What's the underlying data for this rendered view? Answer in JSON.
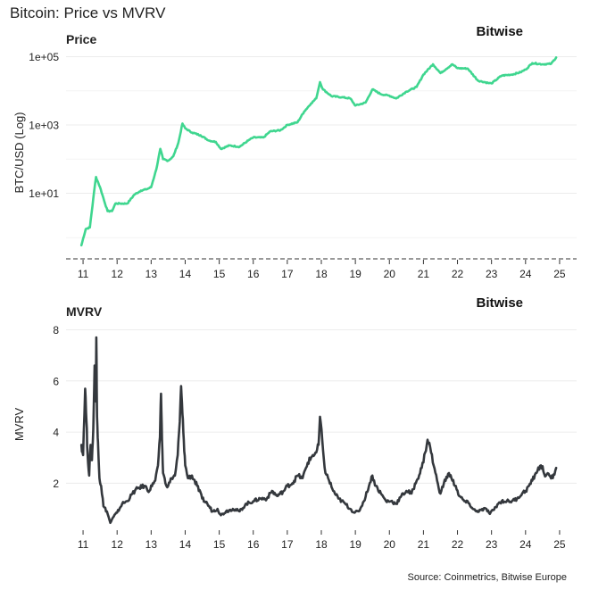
{
  "title": "Bitcoin: Price vs MVRV",
  "source": "Source: Coinmetrics, Bitwise Europe",
  "brand": "Bitwise",
  "colors": {
    "price": "#3fd68f",
    "mvrv": "#34383d",
    "grid": "#ececec",
    "text": "#222222"
  },
  "chart_data": [
    {
      "type": "line",
      "panel_title": "Price",
      "ylabel": "BTC/USD (Log)",
      "yscale": "log",
      "ylim": [
        0.12,
        200000
      ],
      "yticks": [
        10,
        1000,
        100000
      ],
      "yticklabels": [
        "1e+01",
        "1e+03",
        "1e+05"
      ],
      "xlim": [
        2010.5,
        2025.5
      ],
      "xticks": [
        2011,
        2012,
        2013,
        2014,
        2015,
        2016,
        2017,
        2018,
        2019,
        2020,
        2021,
        2022,
        2023,
        2024,
        2025
      ],
      "xticklabels": [
        "11",
        "12",
        "13",
        "14",
        "15",
        "16",
        "17",
        "18",
        "19",
        "20",
        "21",
        "22",
        "23",
        "24",
        "25"
      ],
      "series": [
        {
          "name": "BTC/USD",
          "x": [
            2010.95,
            2011.08,
            2011.2,
            2011.3,
            2011.38,
            2011.45,
            2011.52,
            2011.62,
            2011.72,
            2011.85,
            2011.95,
            2012.1,
            2012.3,
            2012.5,
            2012.7,
            2012.85,
            2013.0,
            2013.15,
            2013.27,
            2013.35,
            2013.5,
            2013.65,
            2013.8,
            2013.92,
            2014.0,
            2014.2,
            2014.45,
            2014.7,
            2014.9,
            2015.05,
            2015.3,
            2015.6,
            2015.85,
            2016.0,
            2016.3,
            2016.5,
            2016.8,
            2017.0,
            2017.3,
            2017.5,
            2017.7,
            2017.85,
            2017.96,
            2018.05,
            2018.3,
            2018.6,
            2018.85,
            2019.0,
            2019.3,
            2019.5,
            2019.75,
            2020.0,
            2020.2,
            2020.5,
            2020.8,
            2021.0,
            2021.28,
            2021.5,
            2021.85,
            2022.0,
            2022.3,
            2022.6,
            2022.9,
            2023.0,
            2023.3,
            2023.6,
            2023.85,
            2024.0,
            2024.2,
            2024.5,
            2024.75,
            2024.9
          ],
          "values": [
            0.3,
            0.9,
            1.0,
            7.0,
            30.0,
            20.0,
            13.0,
            6.0,
            3.0,
            3.0,
            5.0,
            5.0,
            5.0,
            9.0,
            12.0,
            13.0,
            15.0,
            50.0,
            200.0,
            100.0,
            90.0,
            120.0,
            300.0,
            1100.0,
            800.0,
            600.0,
            500.0,
            350.0,
            320.0,
            200.0,
            250.0,
            230.0,
            350.0,
            430.0,
            430.0,
            650.0,
            700.0,
            1000.0,
            1200.0,
            2500.0,
            4300.0,
            6000.0,
            18000.0,
            11000.0,
            7000.0,
            6500.0,
            6000.0,
            3700.0,
            4500.0,
            11000.0,
            8000.0,
            7200.0,
            6000.0,
            9500.0,
            13000.0,
            30000.0,
            60000.0,
            33000.0,
            60000.0,
            46000.0,
            45000.0,
            20000.0,
            17000.0,
            16500.0,
            28000.0,
            30000.0,
            35000.0,
            42000.0,
            65000.0,
            60000.0,
            62000.0,
            95000.0
          ]
        }
      ]
    },
    {
      "type": "line",
      "panel_title": "MVRV",
      "ylabel": "MVRV",
      "ylim": [
        0.2,
        8.4
      ],
      "yticks": [
        2,
        4,
        6,
        8
      ],
      "yticklabels": [
        "2",
        "4",
        "6",
        "8"
      ],
      "xlim": [
        2010.5,
        2025.5
      ],
      "xticks": [
        2011,
        2012,
        2013,
        2014,
        2015,
        2016,
        2017,
        2018,
        2019,
        2020,
        2021,
        2022,
        2023,
        2024,
        2025
      ],
      "xticklabels": [
        "11",
        "12",
        "13",
        "14",
        "15",
        "16",
        "17",
        "18",
        "19",
        "20",
        "21",
        "22",
        "23",
        "24",
        "25"
      ],
      "series": [
        {
          "name": "MVRV",
          "x": [
            2010.95,
            2011.0,
            2011.06,
            2011.1,
            2011.13,
            2011.18,
            2011.22,
            2011.26,
            2011.3,
            2011.34,
            2011.37,
            2011.39,
            2011.41,
            2011.44,
            2011.48,
            2011.53,
            2011.6,
            2011.7,
            2011.8,
            2011.9,
            2012.0,
            2012.15,
            2012.3,
            2012.45,
            2012.6,
            2012.8,
            2012.95,
            2013.05,
            2013.12,
            2013.2,
            2013.26,
            2013.29,
            2013.32,
            2013.35,
            2013.42,
            2013.5,
            2013.6,
            2013.7,
            2013.78,
            2013.84,
            2013.88,
            2013.92,
            2013.96,
            2014.0,
            2014.08,
            2014.2,
            2014.35,
            2014.5,
            2014.65,
            2014.8,
            2014.95,
            2015.05,
            2015.2,
            2015.4,
            2015.6,
            2015.8,
            2016.0,
            2016.2,
            2016.4,
            2016.55,
            2016.7,
            2016.9,
            2017.0,
            2017.15,
            2017.3,
            2017.45,
            2017.6,
            2017.75,
            2017.85,
            2017.92,
            2017.96,
            2018.05,
            2018.12,
            2018.2,
            2018.35,
            2018.5,
            2018.7,
            2018.85,
            2018.98,
            2019.1,
            2019.25,
            2019.4,
            2019.5,
            2019.6,
            2019.75,
            2019.9,
            2020.05,
            2020.2,
            2020.35,
            2020.5,
            2020.65,
            2020.8,
            2020.95,
            2021.05,
            2021.12,
            2021.2,
            2021.3,
            2021.4,
            2021.5,
            2021.6,
            2021.75,
            2021.85,
            2021.95,
            2022.05,
            2022.2,
            2022.35,
            2022.45,
            2022.55,
            2022.7,
            2022.85,
            2022.95,
            2023.05,
            2023.2,
            2023.3,
            2023.45,
            2023.6,
            2023.75,
            2023.9,
            2024.0,
            2024.1,
            2024.2,
            2024.3,
            2024.45,
            2024.6,
            2024.7,
            2024.8,
            2024.9
          ],
          "values": [
            3.5,
            3.1,
            5.7,
            4.4,
            3.2,
            2.3,
            3.5,
            2.9,
            4.1,
            6.6,
            5.2,
            7.7,
            4.6,
            3.6,
            2.2,
            1.9,
            1.1,
            0.9,
            0.45,
            0.7,
            0.85,
            1.2,
            1.3,
            1.6,
            1.8,
            1.9,
            1.7,
            2.0,
            2.1,
            2.7,
            3.8,
            5.5,
            3.7,
            2.4,
            2.0,
            1.9,
            2.2,
            2.3,
            3.1,
            4.4,
            5.8,
            4.7,
            3.7,
            2.7,
            2.2,
            2.3,
            1.9,
            1.4,
            1.2,
            0.9,
            1.0,
            0.75,
            0.9,
            1.0,
            0.9,
            1.2,
            1.3,
            1.4,
            1.4,
            1.7,
            1.5,
            1.7,
            1.9,
            2.0,
            2.3,
            2.2,
            2.8,
            3.1,
            3.2,
            3.5,
            4.6,
            3.3,
            2.4,
            2.2,
            1.7,
            1.4,
            1.2,
            1.0,
            0.85,
            0.9,
            1.3,
            1.9,
            2.3,
            1.9,
            1.6,
            1.3,
            1.3,
            1.2,
            1.5,
            1.7,
            1.6,
            2.1,
            2.6,
            3.2,
            3.7,
            3.4,
            2.7,
            2.1,
            1.6,
            2.0,
            2.4,
            2.1,
            1.9,
            1.5,
            1.3,
            1.2,
            1.0,
            0.9,
            0.95,
            1.0,
            0.8,
            0.95,
            1.2,
            1.3,
            1.3,
            1.3,
            1.4,
            1.6,
            1.7,
            1.9,
            2.1,
            2.4,
            2.7,
            2.3,
            2.3,
            2.2,
            2.6
          ]
        }
      ]
    }
  ]
}
